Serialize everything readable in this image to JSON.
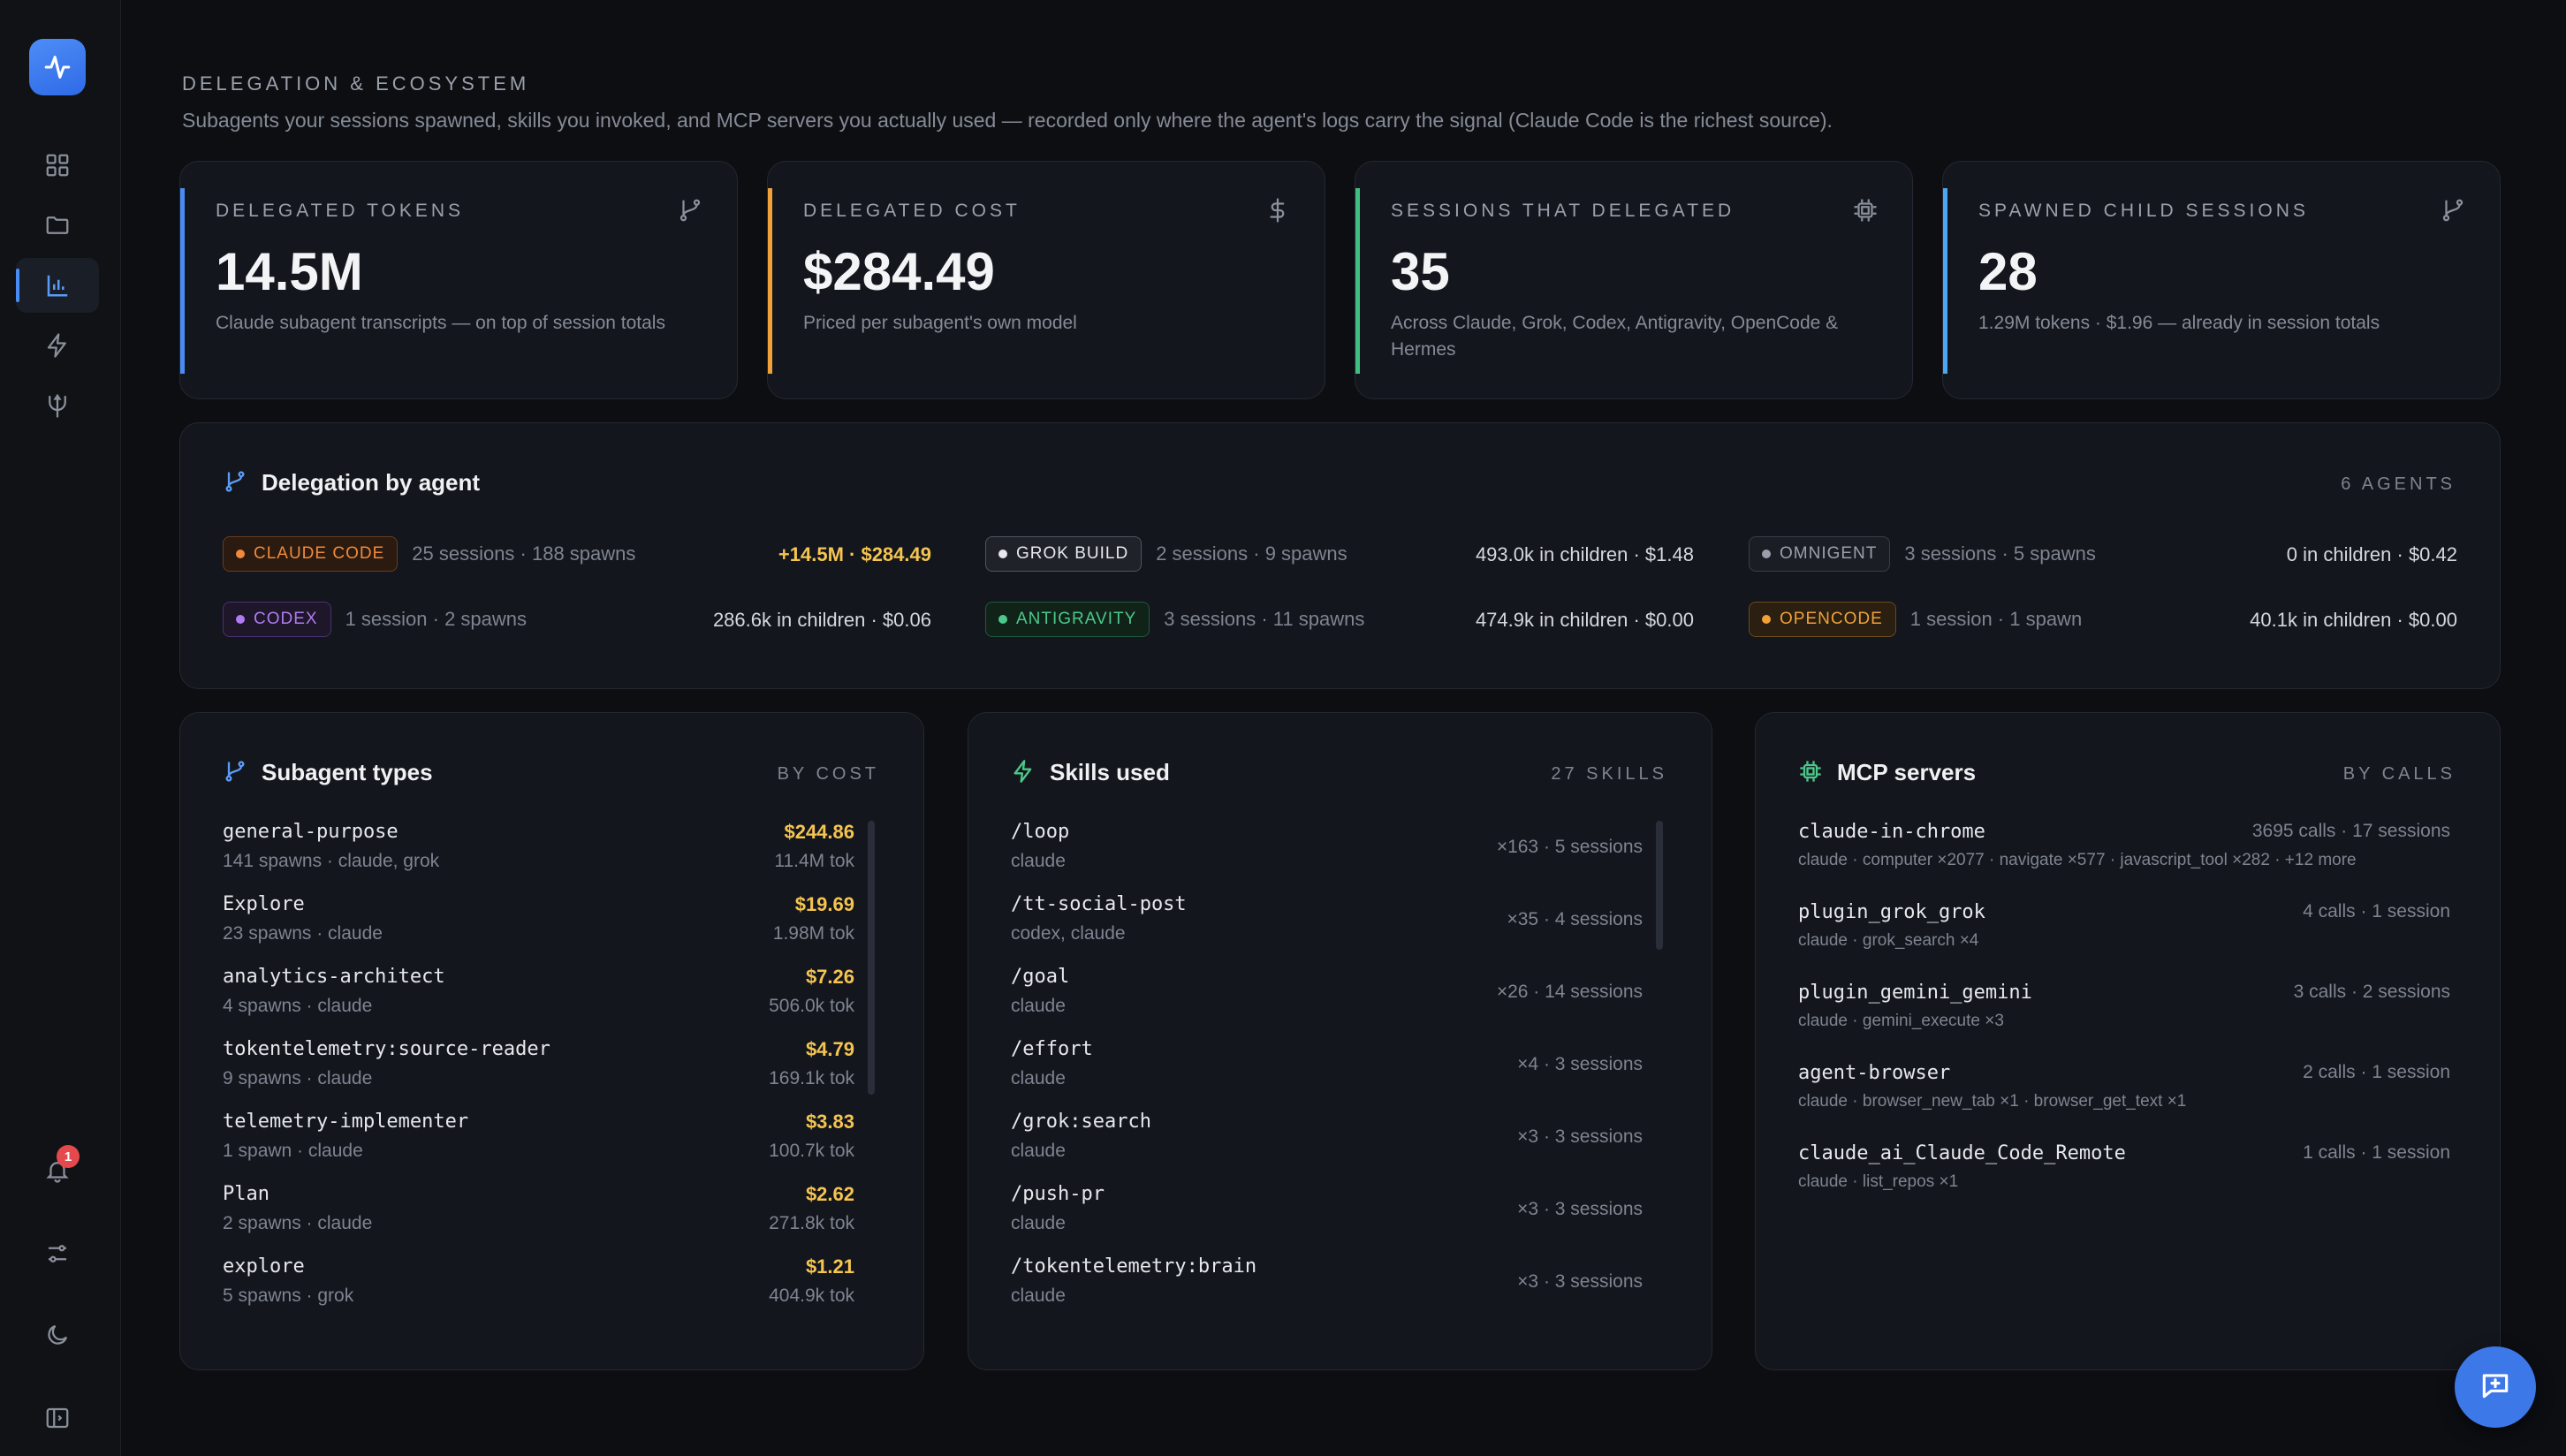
{
  "section": {
    "title": "DELEGATION & ECOSYSTEM",
    "subtitle": "Subagents your sessions spawned, skills you invoked, and MCP servers you actually used — recorded only where the agent's logs carry the signal (Claude Code is the richest source)."
  },
  "kpis": [
    {
      "label": "DELEGATED TOKENS",
      "value": "14.5M",
      "note": "Claude subagent transcripts — on top of session totals",
      "accent": "#4a8cf5",
      "icon": "branch-icon"
    },
    {
      "label": "DELEGATED COST",
      "value": "$284.49",
      "note": "Priced per subagent's own model",
      "accent": "#f0a13a",
      "icon": "dollar-icon"
    },
    {
      "label": "SESSIONS THAT DELEGATED",
      "value": "35",
      "note": "Across Claude, Grok, Codex, Antigravity, OpenCode & Hermes",
      "accent": "#3fbf7f",
      "icon": "chip-icon"
    },
    {
      "label": "SPAWNED CHILD SESSIONS",
      "value": "28",
      "note": "1.29M tokens · $1.96 — already in session totals",
      "accent": "#4aa8f0",
      "icon": "branch-icon"
    }
  ],
  "delegation": {
    "title": "Delegation by agent",
    "count": "6 AGENTS",
    "agents": [
      {
        "name": "CLAUDE CODE",
        "meta": "25 sessions · 188 spawns",
        "value": "+14.5M · $284.49",
        "color": "#f08a3c"
      },
      {
        "name": "GROK BUILD",
        "meta": "2 sessions · 9 spawns",
        "value": "493.0k in children · $1.48",
        "color": "#d5d8de"
      },
      {
        "name": "OMNIGENT",
        "meta": "3 sessions · 5 spawns",
        "value": "0 in children · $0.42",
        "color": "#8a909c"
      },
      {
        "name": "CODEX",
        "meta": "1 session · 2 spawns",
        "value": "286.6k in children · $0.06",
        "color": "#b07cf0"
      },
      {
        "name": "ANTIGRAVITY",
        "meta": "3 sessions · 11 spawns",
        "value": "474.9k in children · $0.00",
        "color": "#4cc98a"
      },
      {
        "name": "OPENCODE",
        "meta": "1 session · 1 spawn",
        "value": "40.1k in children · $0.00",
        "color": "#f0a13a"
      }
    ]
  },
  "subagents": {
    "title": "Subagent types",
    "sort": "BY COST",
    "items": [
      {
        "name": "general-purpose",
        "sub": "141 spawns · claude, grok",
        "cost": "$244.86",
        "tok": "11.4M tok"
      },
      {
        "name": "Explore",
        "sub": "23 spawns · claude",
        "cost": "$19.69",
        "tok": "1.98M tok"
      },
      {
        "name": "analytics-architect",
        "sub": "4 spawns · claude",
        "cost": "$7.26",
        "tok": "506.0k tok"
      },
      {
        "name": "tokentelemetry:source-reader",
        "sub": "9 spawns · claude",
        "cost": "$4.79",
        "tok": "169.1k tok"
      },
      {
        "name": "telemetry-implementer",
        "sub": "1 spawn · claude",
        "cost": "$3.83",
        "tok": "100.7k tok"
      },
      {
        "name": "Plan",
        "sub": "2 spawns · claude",
        "cost": "$2.62",
        "tok": "271.8k tok"
      },
      {
        "name": "explore",
        "sub": "5 spawns · grok",
        "cost": "$1.21",
        "tok": "404.9k tok"
      }
    ]
  },
  "skills": {
    "title": "Skills used",
    "count": "27 SKILLS",
    "items": [
      {
        "name": "/loop",
        "sub": "claude",
        "right": "×163 · 5 sessions"
      },
      {
        "name": "/tt-social-post",
        "sub": "codex, claude",
        "right": "×35 · 4 sessions"
      },
      {
        "name": "/goal",
        "sub": "claude",
        "right": "×26 · 14 sessions"
      },
      {
        "name": "/effort",
        "sub": "claude",
        "right": "×4 · 3 sessions"
      },
      {
        "name": "/grok:search",
        "sub": "claude",
        "right": "×3 · 3 sessions"
      },
      {
        "name": "/push-pr",
        "sub": "claude",
        "right": "×3 · 3 sessions"
      },
      {
        "name": "/tokentelemetry:brain",
        "sub": "claude",
        "right": "×3 · 3 sessions"
      }
    ]
  },
  "mcp": {
    "title": "MCP servers",
    "sort": "BY CALLS",
    "items": [
      {
        "name": "claude-in-chrome",
        "sub": "claude · computer ×2077 · navigate ×577 · javascript_tool ×282 · +12 more",
        "right": "3695 calls · 17 sessions"
      },
      {
        "name": "plugin_grok_grok",
        "sub": "claude · grok_search ×4",
        "right": "4 calls · 1 session"
      },
      {
        "name": "plugin_gemini_gemini",
        "sub": "claude · gemini_execute ×3",
        "right": "3 calls · 2 sessions"
      },
      {
        "name": "agent-browser",
        "sub": "claude · browser_new_tab ×1 · browser_get_text ×1",
        "right": "2 calls · 1 session"
      },
      {
        "name": "claude_ai_Claude_Code_Remote",
        "sub": "claude · list_repos ×1",
        "right": "1 calls · 1 session"
      }
    ]
  },
  "notifications": {
    "count": "1"
  }
}
